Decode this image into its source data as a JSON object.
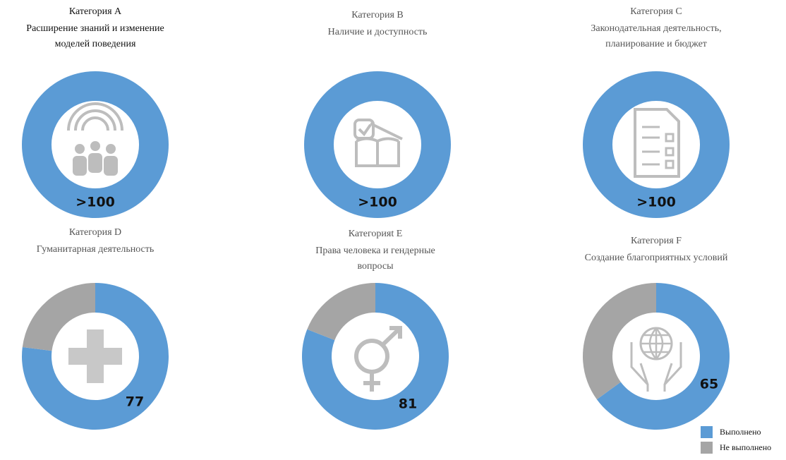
{
  "chart_data": [
    {
      "type": "donut",
      "title": "Категория A",
      "subtitle": [
        "Расширение знаний и изменение",
        "моделей поведения"
      ],
      "values": [
        100,
        0
      ],
      "value_labels": [
        ">100",
        null
      ]
    },
    {
      "type": "donut",
      "title": "Категория B",
      "subtitle": [
        "Наличие и доступность"
      ],
      "values": [
        100,
        0
      ],
      "value_labels": [
        ">100",
        null
      ]
    },
    {
      "type": "donut",
      "title": "Категория C",
      "subtitle": [
        "Законодательная деятельность,",
        "планирование и бюджет"
      ],
      "values": [
        100,
        0
      ],
      "value_labels": [
        ">100",
        null
      ]
    },
    {
      "type": "donut",
      "title": "Категория D",
      "subtitle": [
        "Гуманитарная деятельность"
      ],
      "values": [
        77,
        23
      ]
    },
    {
      "type": "donut",
      "title": "Категорияt E",
      "subtitle": [
        "Права человека и гендерные",
        "вопросы"
      ],
      "values": [
        81,
        19
      ]
    },
    {
      "type": "donut",
      "title": "Категория F",
      "subtitle": [
        "Создание благоприятных условий"
      ],
      "values": [
        65,
        35
      ]
    }
  ],
  "legend": [
    {
      "name": "Выполнено",
      "color": "#5b9bd5"
    },
    {
      "name": "Не выполнено",
      "color": "#a5a5a5"
    }
  ]
}
